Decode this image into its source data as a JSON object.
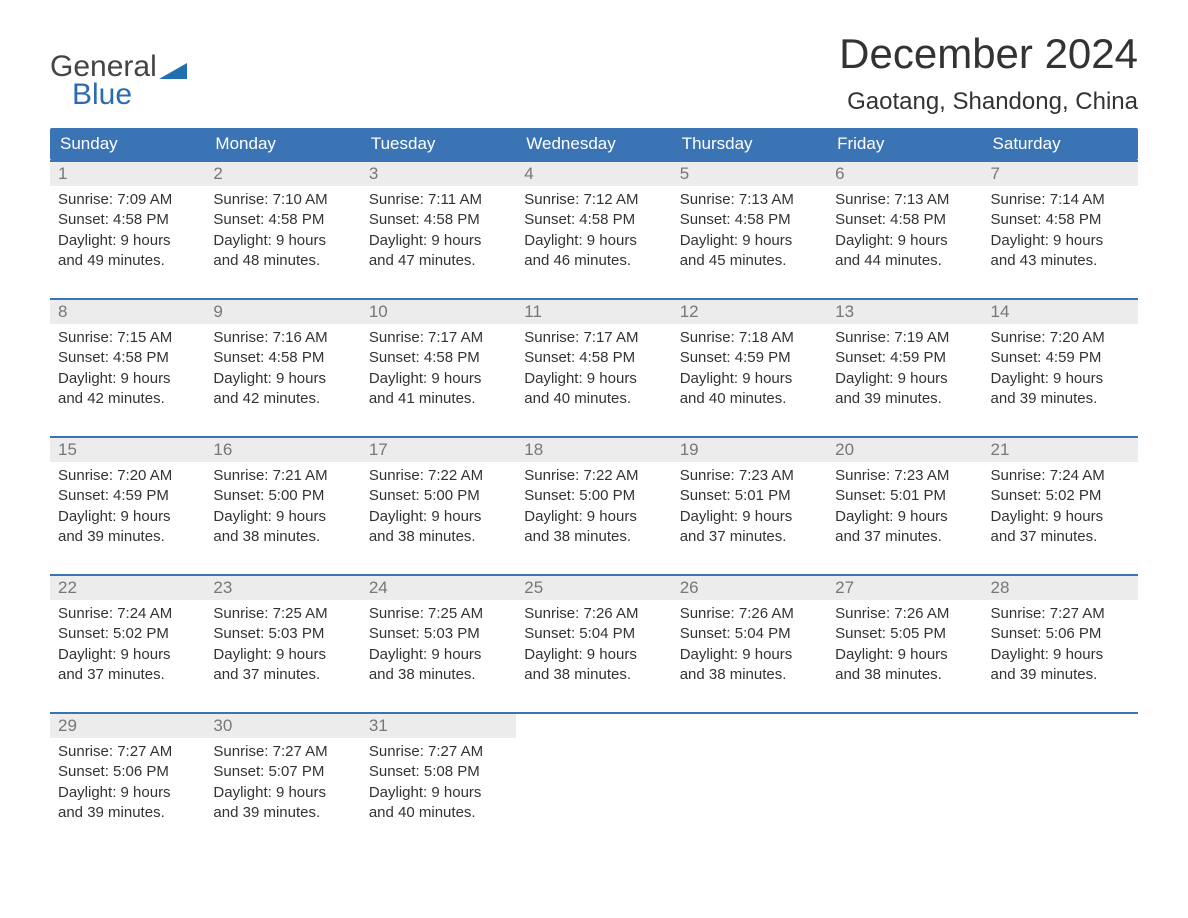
{
  "logo": {
    "text_general": "General",
    "text_blue": "Blue",
    "flag_color": "#1f6fb2"
  },
  "title": "December 2024",
  "location": "Gaotang, Shandong, China",
  "colors": {
    "header_bg": "#3b74b5",
    "header_text": "#ffffff",
    "daynum_bg": "#ececec",
    "daynum_text": "#777777",
    "body_text": "#333333",
    "row_border": "#3b74b5"
  },
  "weekdays": [
    "Sunday",
    "Monday",
    "Tuesday",
    "Wednesday",
    "Thursday",
    "Friday",
    "Saturday"
  ],
  "labels": {
    "sunrise": "Sunrise:",
    "sunset": "Sunset:",
    "daylight_prefix": "Daylight:"
  },
  "weeks": [
    [
      {
        "n": 1,
        "sunrise": "7:09 AM",
        "sunset": "4:58 PM",
        "dl": "9 hours and 49 minutes."
      },
      {
        "n": 2,
        "sunrise": "7:10 AM",
        "sunset": "4:58 PM",
        "dl": "9 hours and 48 minutes."
      },
      {
        "n": 3,
        "sunrise": "7:11 AM",
        "sunset": "4:58 PM",
        "dl": "9 hours and 47 minutes."
      },
      {
        "n": 4,
        "sunrise": "7:12 AM",
        "sunset": "4:58 PM",
        "dl": "9 hours and 46 minutes."
      },
      {
        "n": 5,
        "sunrise": "7:13 AM",
        "sunset": "4:58 PM",
        "dl": "9 hours and 45 minutes."
      },
      {
        "n": 6,
        "sunrise": "7:13 AM",
        "sunset": "4:58 PM",
        "dl": "9 hours and 44 minutes."
      },
      {
        "n": 7,
        "sunrise": "7:14 AM",
        "sunset": "4:58 PM",
        "dl": "9 hours and 43 minutes."
      }
    ],
    [
      {
        "n": 8,
        "sunrise": "7:15 AM",
        "sunset": "4:58 PM",
        "dl": "9 hours and 42 minutes."
      },
      {
        "n": 9,
        "sunrise": "7:16 AM",
        "sunset": "4:58 PM",
        "dl": "9 hours and 42 minutes."
      },
      {
        "n": 10,
        "sunrise": "7:17 AM",
        "sunset": "4:58 PM",
        "dl": "9 hours and 41 minutes."
      },
      {
        "n": 11,
        "sunrise": "7:17 AM",
        "sunset": "4:58 PM",
        "dl": "9 hours and 40 minutes."
      },
      {
        "n": 12,
        "sunrise": "7:18 AM",
        "sunset": "4:59 PM",
        "dl": "9 hours and 40 minutes."
      },
      {
        "n": 13,
        "sunrise": "7:19 AM",
        "sunset": "4:59 PM",
        "dl": "9 hours and 39 minutes."
      },
      {
        "n": 14,
        "sunrise": "7:20 AM",
        "sunset": "4:59 PM",
        "dl": "9 hours and 39 minutes."
      }
    ],
    [
      {
        "n": 15,
        "sunrise": "7:20 AM",
        "sunset": "4:59 PM",
        "dl": "9 hours and 39 minutes."
      },
      {
        "n": 16,
        "sunrise": "7:21 AM",
        "sunset": "5:00 PM",
        "dl": "9 hours and 38 minutes."
      },
      {
        "n": 17,
        "sunrise": "7:22 AM",
        "sunset": "5:00 PM",
        "dl": "9 hours and 38 minutes."
      },
      {
        "n": 18,
        "sunrise": "7:22 AM",
        "sunset": "5:00 PM",
        "dl": "9 hours and 38 minutes."
      },
      {
        "n": 19,
        "sunrise": "7:23 AM",
        "sunset": "5:01 PM",
        "dl": "9 hours and 37 minutes."
      },
      {
        "n": 20,
        "sunrise": "7:23 AM",
        "sunset": "5:01 PM",
        "dl": "9 hours and 37 minutes."
      },
      {
        "n": 21,
        "sunrise": "7:24 AM",
        "sunset": "5:02 PM",
        "dl": "9 hours and 37 minutes."
      }
    ],
    [
      {
        "n": 22,
        "sunrise": "7:24 AM",
        "sunset": "5:02 PM",
        "dl": "9 hours and 37 minutes."
      },
      {
        "n": 23,
        "sunrise": "7:25 AM",
        "sunset": "5:03 PM",
        "dl": "9 hours and 37 minutes."
      },
      {
        "n": 24,
        "sunrise": "7:25 AM",
        "sunset": "5:03 PM",
        "dl": "9 hours and 38 minutes."
      },
      {
        "n": 25,
        "sunrise": "7:26 AM",
        "sunset": "5:04 PM",
        "dl": "9 hours and 38 minutes."
      },
      {
        "n": 26,
        "sunrise": "7:26 AM",
        "sunset": "5:04 PM",
        "dl": "9 hours and 38 minutes."
      },
      {
        "n": 27,
        "sunrise": "7:26 AM",
        "sunset": "5:05 PM",
        "dl": "9 hours and 38 minutes."
      },
      {
        "n": 28,
        "sunrise": "7:27 AM",
        "sunset": "5:06 PM",
        "dl": "9 hours and 39 minutes."
      }
    ],
    [
      {
        "n": 29,
        "sunrise": "7:27 AM",
        "sunset": "5:06 PM",
        "dl": "9 hours and 39 minutes."
      },
      {
        "n": 30,
        "sunrise": "7:27 AM",
        "sunset": "5:07 PM",
        "dl": "9 hours and 39 minutes."
      },
      {
        "n": 31,
        "sunrise": "7:27 AM",
        "sunset": "5:08 PM",
        "dl": "9 hours and 40 minutes."
      },
      null,
      null,
      null,
      null
    ]
  ]
}
